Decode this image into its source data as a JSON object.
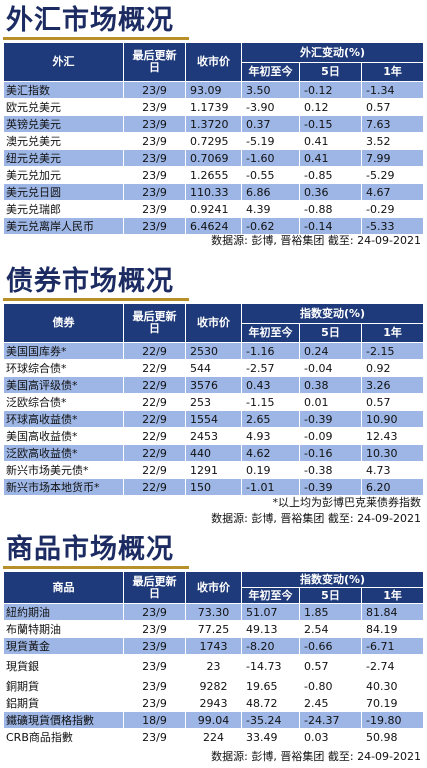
{
  "fx": {
    "title": "外汇市场概况",
    "headers": {
      "name": "外汇",
      "date": "最后更新日",
      "close": "收市价",
      "change": "外汇变动(%)",
      "ytd": "年初至今",
      "d5": "5日",
      "y1": "1年"
    },
    "rows": [
      {
        "name": "美汇指数",
        "date": "23/9",
        "close": "93.09",
        "ytd": "3.50",
        "d5": "-0.12",
        "y1": "-1.34"
      },
      {
        "name": "欧元兑美元",
        "date": "23/9",
        "close": "1.1739",
        "ytd": "-3.90",
        "d5": "0.12",
        "y1": "0.57"
      },
      {
        "name": "英镑兑美元",
        "date": "23/9",
        "close": "1.3720",
        "ytd": "0.37",
        "d5": "-0.15",
        "y1": "7.63"
      },
      {
        "name": "澳元兑美元",
        "date": "23/9",
        "close": "0.7295",
        "ytd": "-5.19",
        "d5": "0.41",
        "y1": "3.52"
      },
      {
        "name": "纽元兑美元",
        "date": "23/9",
        "close": "0.7069",
        "ytd": "-1.60",
        "d5": "0.41",
        "y1": "7.99"
      },
      {
        "name": "美元兑加元",
        "date": "23/9",
        "close": "1.2655",
        "ytd": "-0.55",
        "d5": "-0.85",
        "y1": "-5.29"
      },
      {
        "name": "美元兑日圆",
        "date": "23/9",
        "close": "110.33",
        "ytd": "6.86",
        "d5": "0.36",
        "y1": "4.67"
      },
      {
        "name": "美元兑瑞郎",
        "date": "23/9",
        "close": "0.9241",
        "ytd": "4.39",
        "d5": "-0.88",
        "y1": "-0.29"
      },
      {
        "name": "美元兑离岸人民币",
        "date": "23/9",
        "close": "6.4624",
        "ytd": "-0.62",
        "d5": "-0.14",
        "y1": "-5.33"
      }
    ],
    "source": "数据源: 彭博, 晋裕集团 截至: 24-09-2021"
  },
  "bonds": {
    "title": "债券市场概况",
    "headers": {
      "name": "债券",
      "date": "最后更新日",
      "close": "收市价",
      "change": "指数变动(%)",
      "ytd": "年初至今",
      "d5": "5日",
      "y1": "1年"
    },
    "rows": [
      {
        "name": "美国国库券*",
        "date": "22/9",
        "close": "2530",
        "ytd": "-1.16",
        "d5": "0.24",
        "y1": "-2.15"
      },
      {
        "name": "环球综合债*",
        "date": "22/9",
        "close": "544",
        "ytd": "-2.57",
        "d5": "-0.04",
        "y1": "0.92"
      },
      {
        "name": "美国高评级债*",
        "date": "22/9",
        "close": "3576",
        "ytd": "0.43",
        "d5": "0.38",
        "y1": "3.26"
      },
      {
        "name": "泛欧综合债*",
        "date": "22/9",
        "close": "253",
        "ytd": "-1.15",
        "d5": "0.01",
        "y1": "0.57"
      },
      {
        "name": "环球高收益债*",
        "date": "22/9",
        "close": "1554",
        "ytd": "2.65",
        "d5": "-0.39",
        "y1": "10.90"
      },
      {
        "name": "美国高收益债*",
        "date": "22/9",
        "close": "2453",
        "ytd": "4.93",
        "d5": "-0.09",
        "y1": "12.43"
      },
      {
        "name": "泛欧高收益债*",
        "date": "22/9",
        "close": "440",
        "ytd": "4.62",
        "d5": "-0.16",
        "y1": "10.30"
      },
      {
        "name": "新兴市场美元债*",
        "date": "22/9",
        "close": "1291",
        "ytd": "0.19",
        "d5": "-0.38",
        "y1": "4.73"
      },
      {
        "name": "新兴市场本地货币*",
        "date": "22/9",
        "close": "150",
        "ytd": "-1.01",
        "d5": "-0.39",
        "y1": "6.20"
      }
    ],
    "note": "*以上均为彭博巴克莱债券指数",
    "source": "数据源: 彭博, 晋裕集团 截至: 24-09-2021"
  },
  "commodities": {
    "title": "商品市场概况",
    "headers": {
      "name": "商品",
      "date": "最后更新日",
      "close": "收市价",
      "change": "指数变动(%)",
      "ytd": "年初至今",
      "d5": "5日",
      "y1": "1年"
    },
    "rows": [
      {
        "name": "紐約期油",
        "date": "23/9",
        "close": "73.30",
        "ytd": "51.07",
        "d5": "1.85",
        "y1": "81.84"
      },
      {
        "name": "布蘭特期油",
        "date": "23/9",
        "close": "77.25",
        "ytd": "49.13",
        "d5": "2.54",
        "y1": "84.19"
      },
      {
        "name": "現貨黃金",
        "date": "23/9",
        "close": "1743",
        "ytd": "-8.20",
        "d5": "-0.66",
        "y1": "-6.71"
      },
      {
        "name": "現貨銀",
        "date": "23/9",
        "close": "23",
        "ytd": "-14.73",
        "d5": "0.57",
        "y1": "-2.74"
      },
      {
        "name": "銅期貨",
        "date": "23/9",
        "close": "9282",
        "ytd": "19.65",
        "d5": "-0.80",
        "y1": "40.30"
      },
      {
        "name": "鋁期貨",
        "date": "23/9",
        "close": "2943",
        "ytd": "48.72",
        "d5": "2.45",
        "y1": "70.19"
      },
      {
        "name": "鐵礦現貨價格指數",
        "date": "18/9",
        "close": "99.04",
        "ytd": "-35.24",
        "d5": "-24.37",
        "y1": "-19.80"
      },
      {
        "name": "CRB商品指數",
        "date": "23/9",
        "close": "224",
        "ytd": "33.49",
        "d5": "0.03",
        "y1": "50.98"
      }
    ],
    "source": "数据源: 彭博, 晋裕集团 截至: 24-09-2021"
  }
}
